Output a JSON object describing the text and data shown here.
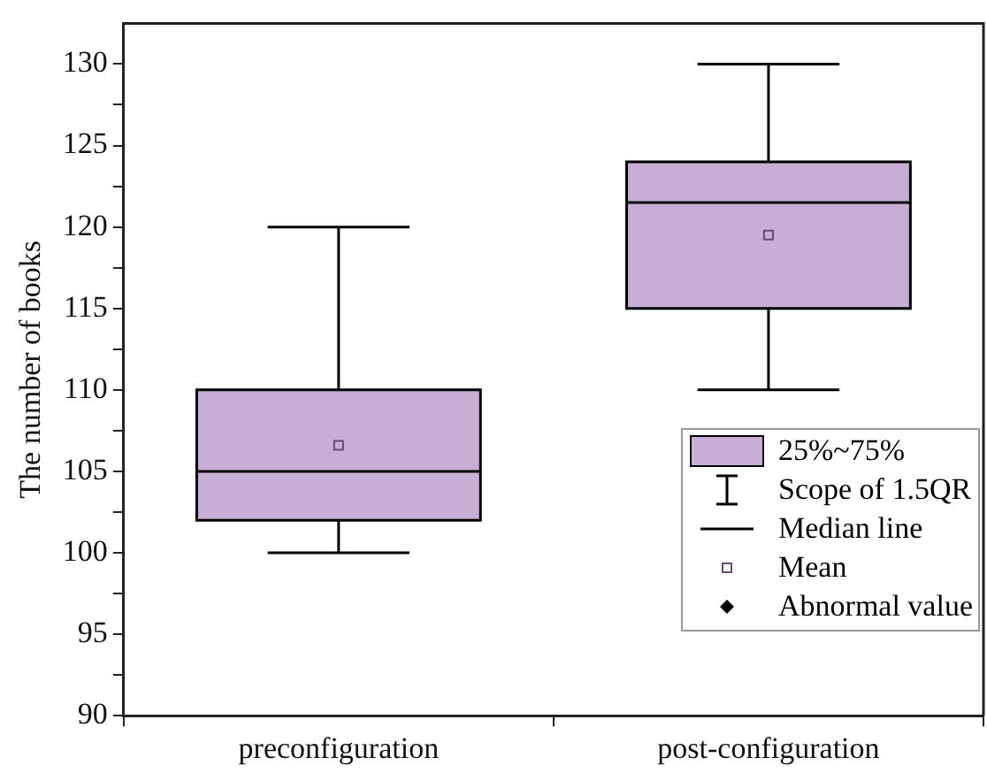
{
  "chart_data": {
    "type": "box",
    "ylabel": "The number of books",
    "categories": [
      "preconfiguration",
      "post-configuration"
    ],
    "series": [
      {
        "color": "#c8aed4",
        "boxes": [
          {
            "low": 100,
            "q1": 102,
            "median": 105,
            "q3": 110,
            "high": 120,
            "mean": 106.6
          },
          {
            "low": 110,
            "q1": 115,
            "median": 121.5,
            "q3": 124,
            "high": 130,
            "mean": 119.5
          }
        ]
      }
    ],
    "ylim": [
      90,
      132.5
    ],
    "yticks": [
      90,
      {
        "value": 92.5,
        "label": null
      },
      95,
      {
        "value": 97.5,
        "label": null
      },
      100,
      {
        "value": 102.5,
        "label": null
      },
      105,
      {
        "value": 107.5,
        "label": null
      },
      110,
      {
        "value": 112.5,
        "label": null
      },
      115,
      {
        "value": 117.5,
        "label": null
      },
      120,
      {
        "value": 122.5,
        "label": null
      },
      125,
      {
        "value": 127.5,
        "label": null
      },
      130
    ],
    "annotations": [
      "25%~75%",
      "Scope of 1.5QR",
      "Median line",
      "Mean",
      "Abnormal value"
    ]
  }
}
